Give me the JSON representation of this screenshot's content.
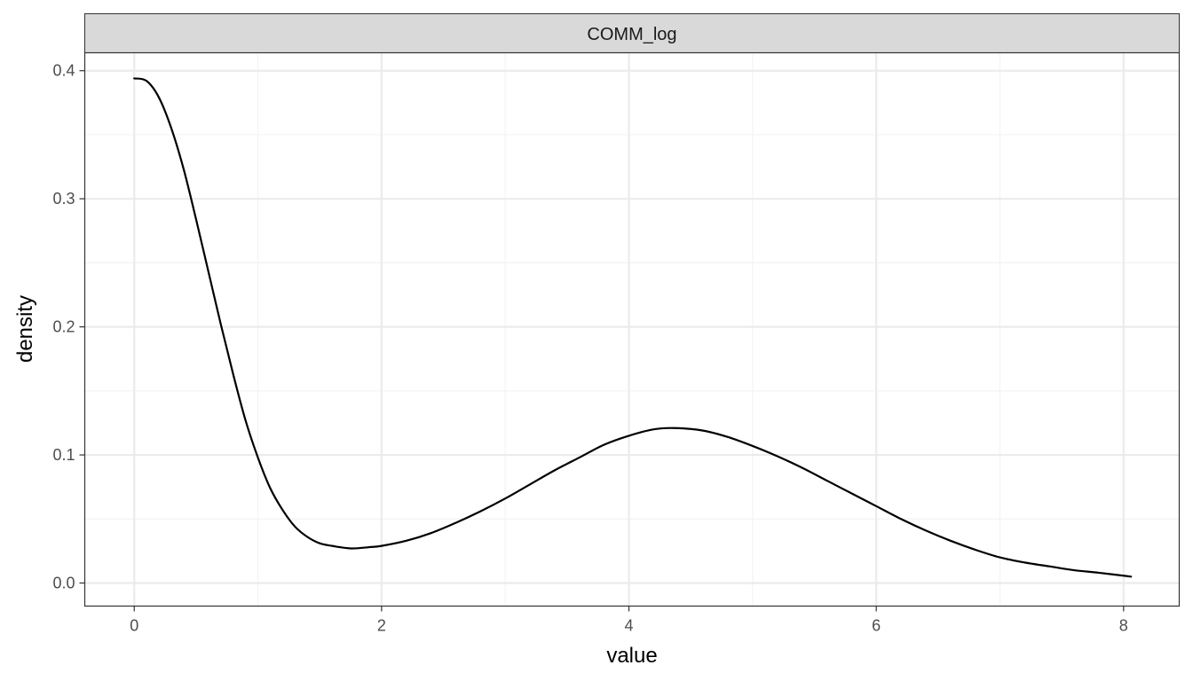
{
  "chart_data": {
    "type": "line",
    "facet_label": "COMM_log",
    "xlabel": "value",
    "ylabel": "density",
    "xlim": [
      -0.4,
      8.45
    ],
    "ylim": [
      -0.018,
      0.414
    ],
    "x_major_ticks": [
      0,
      2,
      4,
      6,
      8
    ],
    "x_minor_ticks": [
      1,
      3,
      5,
      7
    ],
    "y_major_ticks": [
      0.0,
      0.1,
      0.2,
      0.3,
      0.4
    ],
    "y_minor_ticks": [
      0.05,
      0.15,
      0.25,
      0.35
    ],
    "x_tick_labels": [
      "0",
      "2",
      "4",
      "6",
      "8"
    ],
    "y_tick_labels": [
      "0.0",
      "0.1",
      "0.2",
      "0.3",
      "0.4"
    ],
    "grid": true,
    "series": [
      {
        "x": [
          0.0,
          0.1,
          0.2,
          0.3,
          0.4,
          0.5,
          0.6,
          0.7,
          0.8,
          0.9,
          1.0,
          1.1,
          1.2,
          1.3,
          1.4,
          1.5,
          1.6,
          1.75,
          1.9,
          2.0,
          2.2,
          2.4,
          2.6,
          2.8,
          3.0,
          3.2,
          3.4,
          3.6,
          3.8,
          4.0,
          4.2,
          4.37,
          4.6,
          4.8,
          5.0,
          5.2,
          5.4,
          5.6,
          5.8,
          6.0,
          6.2,
          6.4,
          6.6,
          6.8,
          7.0,
          7.2,
          7.4,
          7.6,
          7.8,
          8.06
        ],
        "y": [
          0.394,
          0.392,
          0.379,
          0.355,
          0.323,
          0.284,
          0.243,
          0.202,
          0.163,
          0.127,
          0.098,
          0.074,
          0.057,
          0.044,
          0.036,
          0.031,
          0.029,
          0.027,
          0.028,
          0.029,
          0.033,
          0.039,
          0.047,
          0.056,
          0.066,
          0.077,
          0.088,
          0.098,
          0.108,
          0.115,
          0.12,
          0.121,
          0.119,
          0.114,
          0.107,
          0.099,
          0.09,
          0.08,
          0.07,
          0.06,
          0.05,
          0.041,
          0.033,
          0.026,
          0.02,
          0.016,
          0.013,
          0.01,
          0.008,
          0.005
        ]
      }
    ],
    "colors": {
      "line": "#000000",
      "grid_major": "#ebebeb",
      "grid_minor": "#f3f3f3",
      "strip_fill": "#d9d9d9",
      "panel_border": "#333333",
      "tick_text": "#4d4d4d"
    }
  }
}
